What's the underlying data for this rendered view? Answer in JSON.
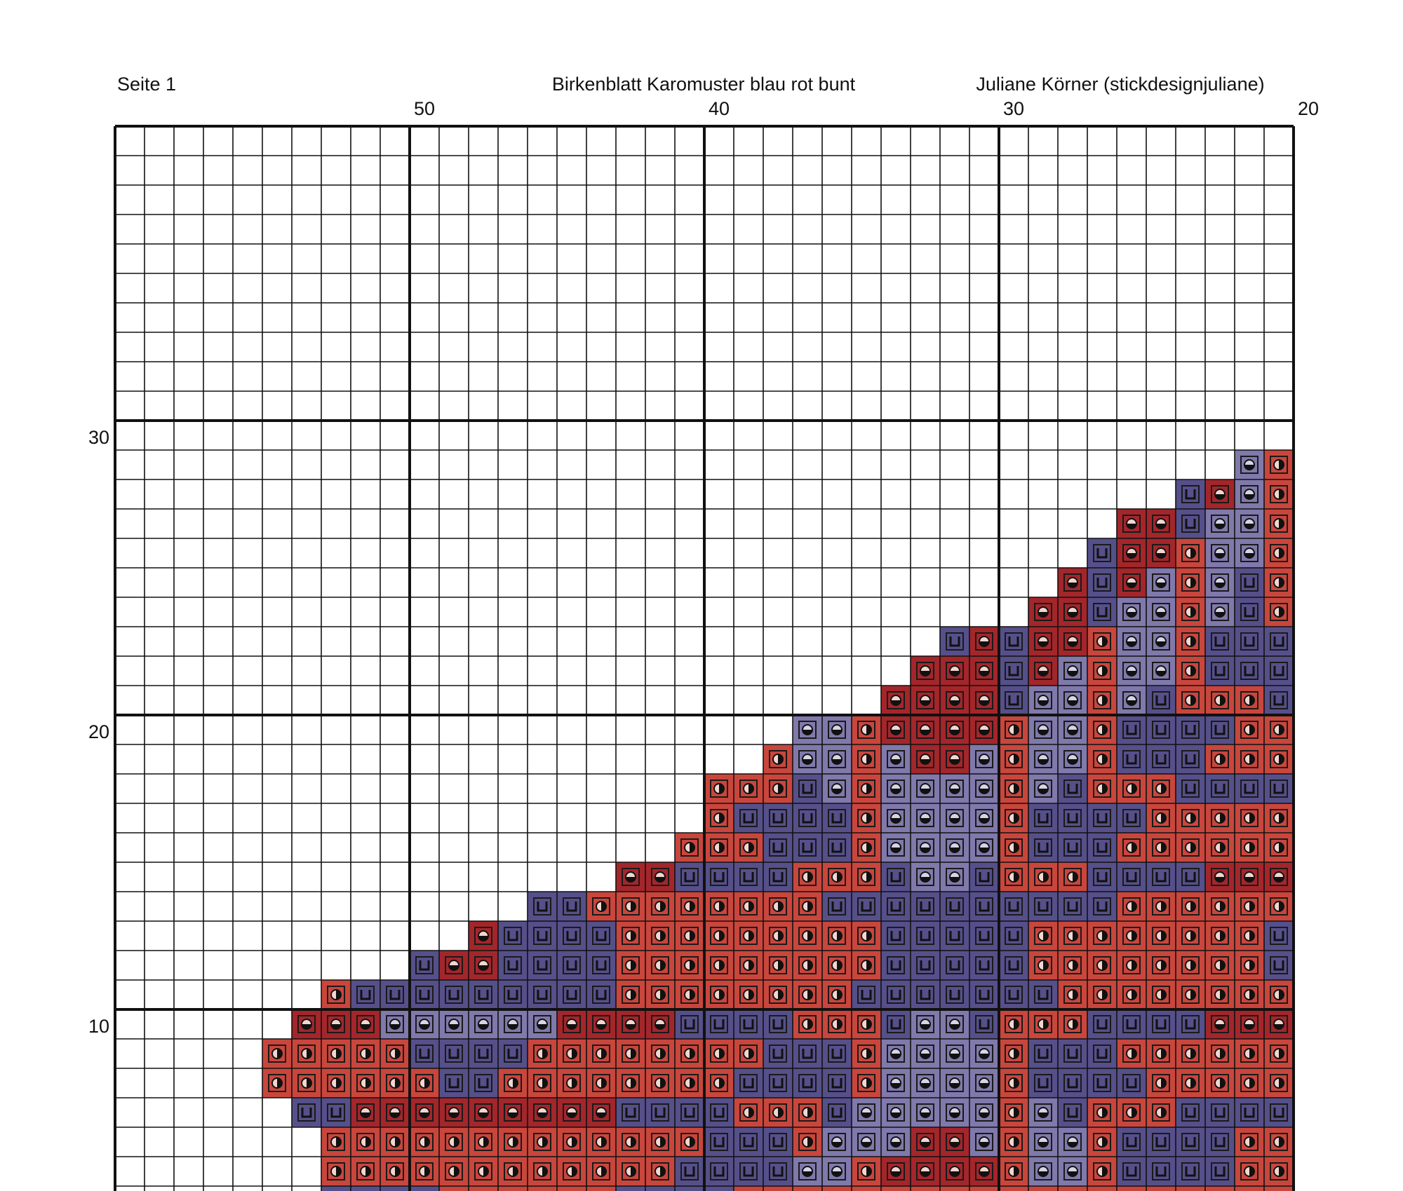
{
  "header": {
    "page": "Seite 1",
    "title": "Birkenblatt Karomuster blau rot bunt",
    "author": "Juliane Körner (stickdesignjuliane)"
  },
  "columns": {
    "labels": [
      50,
      40,
      30,
      20
    ]
  },
  "rows": {
    "labels": [
      30,
      20,
      10
    ]
  }
}
